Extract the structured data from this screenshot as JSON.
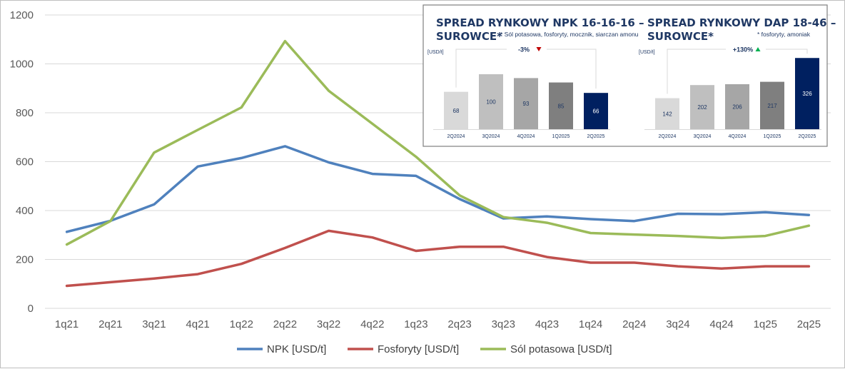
{
  "chart_data": [
    {
      "type": "line",
      "title": "",
      "xlabel": "",
      "ylabel": "",
      "ylim": [
        0,
        1200
      ],
      "yticks": [
        0,
        200,
        400,
        600,
        800,
        1000,
        1200
      ],
      "grid": true,
      "legend_position": "bottom",
      "categories": [
        "1q21",
        "2q21",
        "3q21",
        "4q21",
        "1q22",
        "2q22",
        "3q22",
        "4q22",
        "1q23",
        "2q23",
        "3q23",
        "4q23",
        "1q24",
        "2q24",
        "3q24",
        "4q24",
        "1q25",
        "2q25"
      ],
      "series": [
        {
          "name": "NPK  [USD/t]",
          "color": "#4f81bd",
          "values": [
            313,
            358,
            425,
            580,
            615,
            663,
            597,
            550,
            542,
            447,
            368,
            376,
            365,
            357,
            387,
            385,
            393,
            382
          ]
        },
        {
          "name": "Fosforyty [USD/t]",
          "color": "#c0504d",
          "values": [
            92,
            107,
            122,
            140,
            182,
            247,
            317,
            290,
            235,
            252,
            252,
            210,
            187,
            187,
            172,
            163,
            172,
            172
          ]
        },
        {
          "name": "Sól potasowa [USD/t]",
          "color": "#9bbb59",
          "values": [
            261,
            357,
            637,
            730,
            822,
            1093,
            890,
            755,
            620,
            462,
            373,
            350,
            308,
            302,
            296,
            288,
            296,
            338
          ]
        }
      ]
    },
    {
      "type": "bar",
      "title_line1": "SPREAD RYNKOWY NPK 16-16-16 –",
      "title_line2": "SUROWCE*",
      "note": "* Sól potasowa,  fosforyty, mocznik, siarczan amonu",
      "unit": "[USD/t]",
      "change_label": "-3%",
      "change_direction": "down",
      "change_color": "#c00000",
      "categories": [
        "2Q2024",
        "3Q2024",
        "4Q2024",
        "1Q2025",
        "2Q2025"
      ],
      "values": [
        68,
        100,
        93,
        85,
        66
      ],
      "bar_colors": [
        "#d9d9d9",
        "#bfbfbf",
        "#a6a6a6",
        "#7f7f7f",
        "#002060"
      ],
      "label_colors": [
        "#1f3864",
        "#1f3864",
        "#1f3864",
        "#1f3864",
        "#ffffff"
      ]
    },
    {
      "type": "bar",
      "title_line1": "SPREAD RYNKOWY DAP 18-46 –",
      "title_line2": "SUROWCE*",
      "note": "* fosforyty, amoniak",
      "unit": "[USD/t]",
      "change_label": "+130%",
      "change_direction": "up",
      "change_color": "#00b050",
      "categories": [
        "2Q2024",
        "3Q2024",
        "4Q2024",
        "1Q2025",
        "2Q2025"
      ],
      "values": [
        142,
        202,
        206,
        217,
        326
      ],
      "bar_colors": [
        "#d9d9d9",
        "#bfbfbf",
        "#a6a6a6",
        "#7f7f7f",
        "#002060"
      ],
      "label_colors": [
        "#1f3864",
        "#1f3864",
        "#1f3864",
        "#1f3864",
        "#ffffff"
      ]
    }
  ]
}
